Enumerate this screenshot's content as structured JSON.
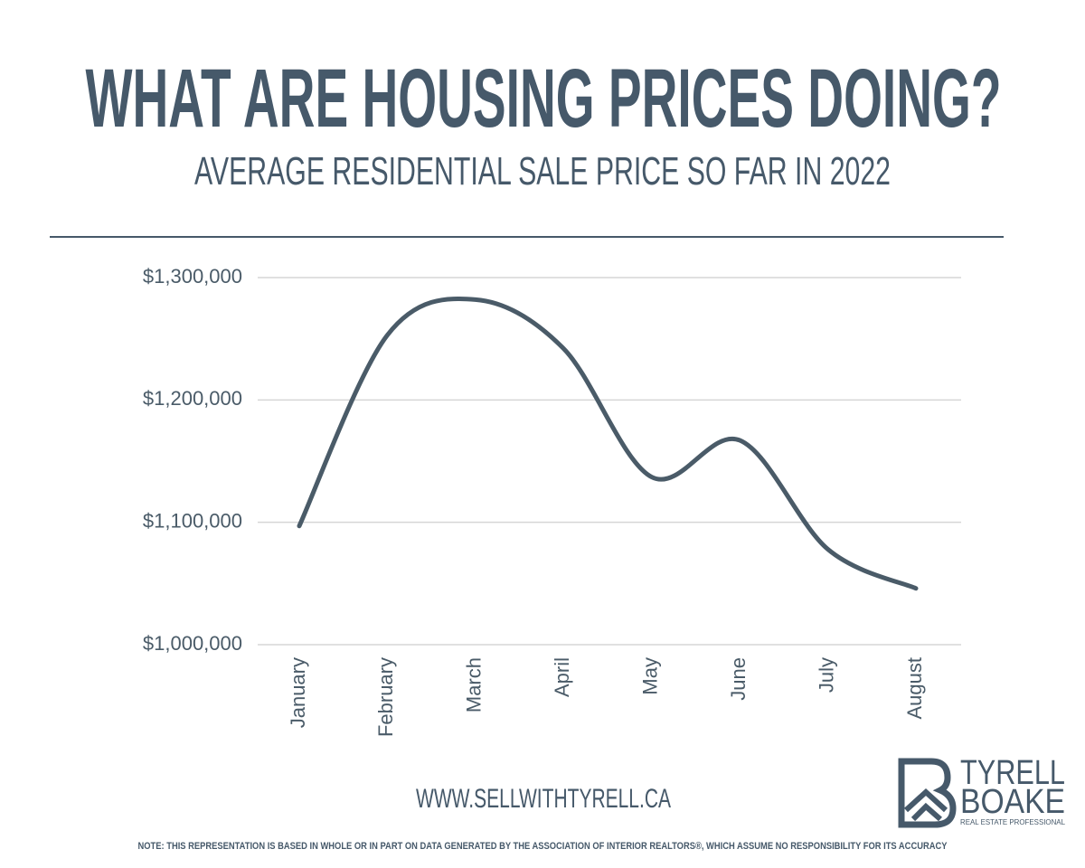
{
  "chart_data": {
    "type": "line",
    "title": "WHAT ARE HOUSING PRICES DOING?",
    "subtitle": "AVERAGE RESIDENTIAL SALE PRICE SO FAR IN 2022",
    "categories": [
      "January",
      "February",
      "March",
      "April",
      "May",
      "June",
      "July",
      "August"
    ],
    "values": [
      1097000,
      1253000,
      1282000,
      1242000,
      1137000,
      1167000,
      1078000,
      1046000
    ],
    "color": "#4a5b68",
    "smooth": true,
    "ylim": [
      1000000,
      1300000
    ],
    "yticks": [
      {
        "value": 1000000,
        "label": "$1,000,000"
      },
      {
        "value": 1100000,
        "label": "$1,100,000"
      },
      {
        "value": 1200000,
        "label": "$1,200,000"
      },
      {
        "value": 1300000,
        "label": "$1,300,000"
      }
    ],
    "grid": true
  },
  "website": "WWW.SELLWITHTYRELL.CA",
  "note": "NOTE:  THIS REPRESENTATION IS BASED IN WHOLE OR IN PART ON DATA GENERATED BY THE ASSOCIATION OF INTERIOR REALTORS®, WHICH ASSUME NO RESPONSIBILITY FOR ITS ACCURACY",
  "logo": {
    "line1": "TYRELL",
    "line2": "BOAKE",
    "tagline": "REAL ESTATE PROFESSIONAL"
  }
}
